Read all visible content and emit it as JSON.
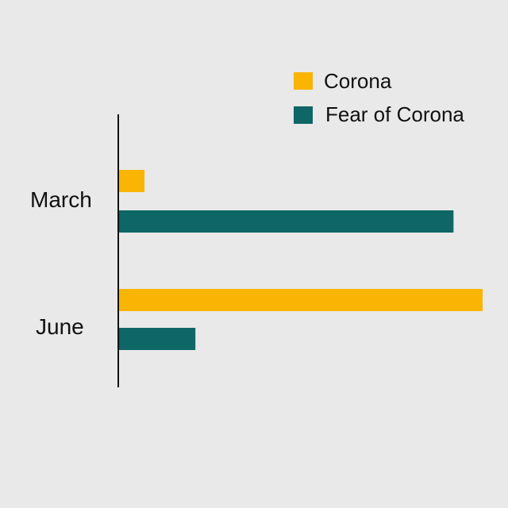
{
  "chart_data": {
    "type": "bar",
    "orientation": "horizontal",
    "categories": [
      "March",
      "June"
    ],
    "series": [
      {
        "name": "Corona",
        "color": "#F9B404",
        "values": [
          7,
          100
        ]
      },
      {
        "name": "Fear of Corona",
        "color": "#0E6666",
        "values": [
          92,
          21
        ]
      }
    ],
    "xlim": [
      0,
      100
    ],
    "axis_ticks": false,
    "grid": false,
    "legend_position": "top-right"
  }
}
